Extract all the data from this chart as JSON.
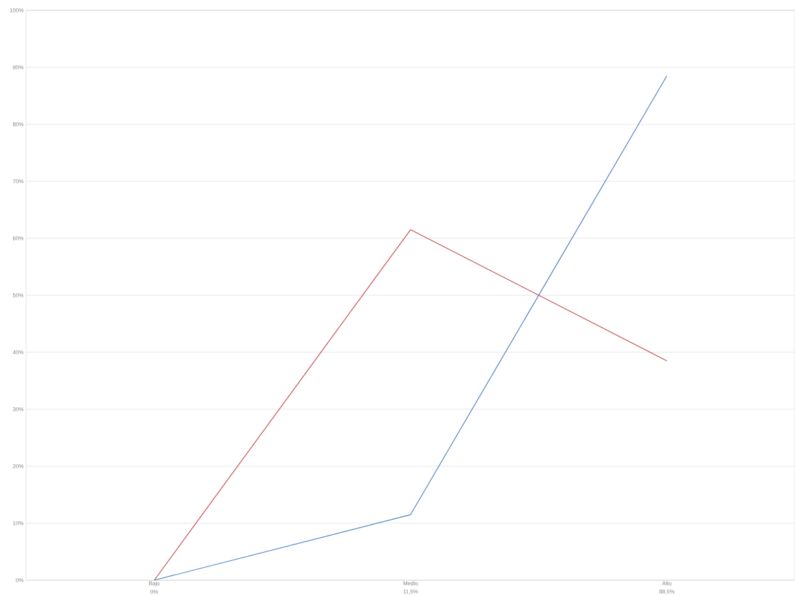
{
  "chart_data": {
    "type": "line",
    "categories": [
      "Bajo",
      "Medio",
      "Alto"
    ],
    "series": [
      {
        "color": "#c0504d",
        "values": [
          0,
          61.5,
          38.5
        ]
      },
      {
        "color": "#4f81bd",
        "values": [
          0,
          11.5,
          88.5
        ],
        "value_labels": [
          "0%",
          "11,5%",
          "88,5%"
        ]
      }
    ],
    "ylim": [
      0,
      100
    ],
    "yticks": [
      {
        "value": 0,
        "label": "0%"
      },
      {
        "value": 10,
        "label": "10%"
      },
      {
        "value": 20,
        "label": "20%"
      },
      {
        "value": 30,
        "label": "30%"
      },
      {
        "value": 40,
        "label": "40%"
      },
      {
        "value": 50,
        "label": "50%"
      },
      {
        "value": 60,
        "label": "60%"
      },
      {
        "value": 70,
        "label": "70%"
      },
      {
        "value": 80,
        "label": "80%"
      },
      {
        "value": 90,
        "label": "90%"
      },
      {
        "value": 100,
        "label": "100%"
      }
    ],
    "grid": "y",
    "marker": "none",
    "line_style": "solid"
  }
}
